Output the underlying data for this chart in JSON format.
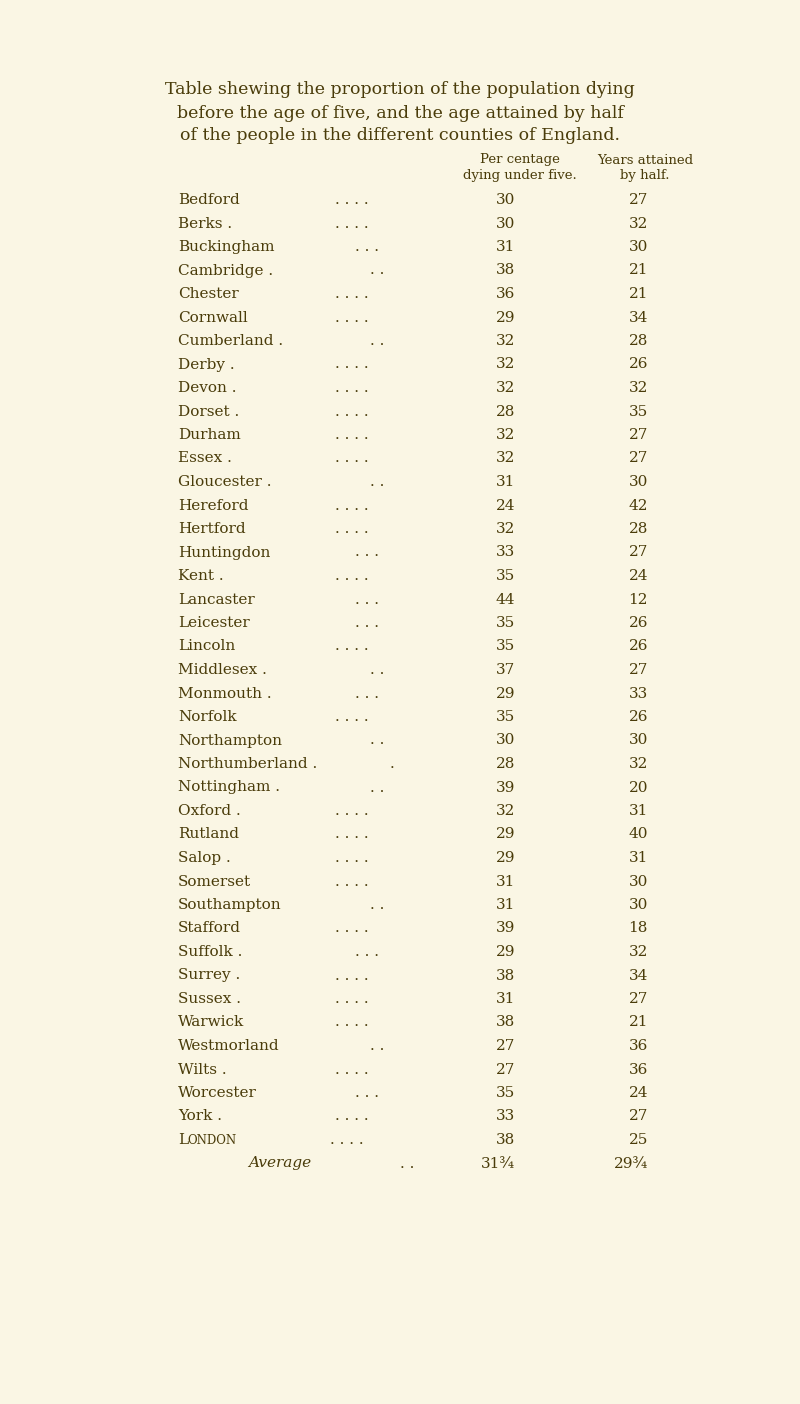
{
  "title_line1": "Table shewing the proportion of the population dying",
  "title_line2": "before the age of five, and the age attained by half",
  "title_line3": "of the people in the different counties of England.",
  "col_header1": "Per centage",
  "col_header2": "Years attained",
  "col_subheader1": "dying under five.",
  "col_subheader2": "by half.",
  "county_names": [
    "Bedford",
    "Berks .",
    "Buckingham",
    "Cambridge .",
    "Chester",
    "Cornwall",
    "Cumberland .",
    "Derby .",
    "Devon .",
    "Dorset .",
    "Durham",
    "Essex .",
    "Gloucester .",
    "Hereford",
    "Hertford",
    "Huntingdon",
    "Kent .",
    "Lancaster",
    "Leicester",
    "Lincoln",
    "Middlesex .",
    "Monmouth .",
    "Norfolk",
    "Northampton",
    "Northumberland .",
    "Nottingham .",
    "Oxford .",
    "Rutland",
    "Salop .",
    "Somerset",
    "Southampton",
    "Stafford",
    "Suffolk .",
    "Surrey .",
    "Sussex .",
    "Warwick",
    "Westmorland",
    "Wilts .",
    "Worcester",
    "York .",
    "London",
    "Average"
  ],
  "pct_dying": [
    "30",
    "30",
    "31",
    "38",
    "36",
    "29",
    "32",
    "32",
    "32",
    "28",
    "32",
    "32",
    "31",
    "24",
    "32",
    "33",
    "35",
    "44",
    "35",
    "35",
    "37",
    "29",
    "35",
    "30",
    "28",
    "39",
    "32",
    "29",
    "29",
    "31",
    "31",
    "39",
    "29",
    "38",
    "31",
    "38",
    "27",
    "27",
    "35",
    "33",
    "38",
    "31¾"
  ],
  "yrs_attained": [
    "27",
    "32",
    "30",
    "21",
    "21",
    "34",
    "28",
    "26",
    "32",
    "35",
    "27",
    "27",
    "30",
    "42",
    "28",
    "27",
    "24",
    "12",
    "26",
    "26",
    "27",
    "33",
    "26",
    "30",
    "32",
    "20",
    "31",
    "40",
    "31",
    "30",
    "30",
    "18",
    "32",
    "34",
    "27",
    "21",
    "36",
    "36",
    "24",
    "27",
    "25",
    "29¾"
  ],
  "bg_color": "#faf6e4",
  "text_color": "#4a3c0a",
  "title_fontsize": 12.5,
  "header_fontsize": 9.5,
  "row_fontsize": 11
}
